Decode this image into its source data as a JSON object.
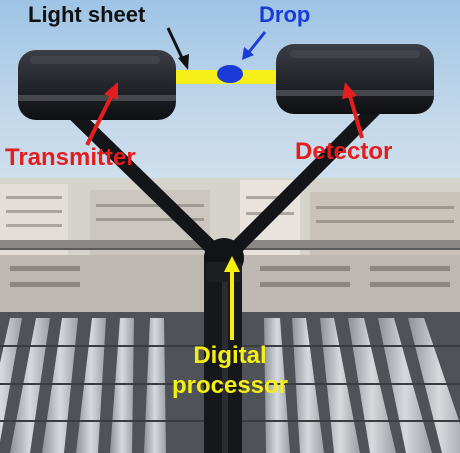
{
  "labels": {
    "light_sheet": "Light sheet",
    "drop": "Drop",
    "transmitter": "Transmitter",
    "detector": "Detector",
    "digital": "Digital",
    "processor": "processor"
  },
  "colors": {
    "label_dark": "#111111",
    "drop_blue": "#1a3bd8",
    "callout_red": "#e31e1e",
    "processor_yellow": "#f6ef12",
    "light_sheet_yellow": "#f7ef1a"
  }
}
